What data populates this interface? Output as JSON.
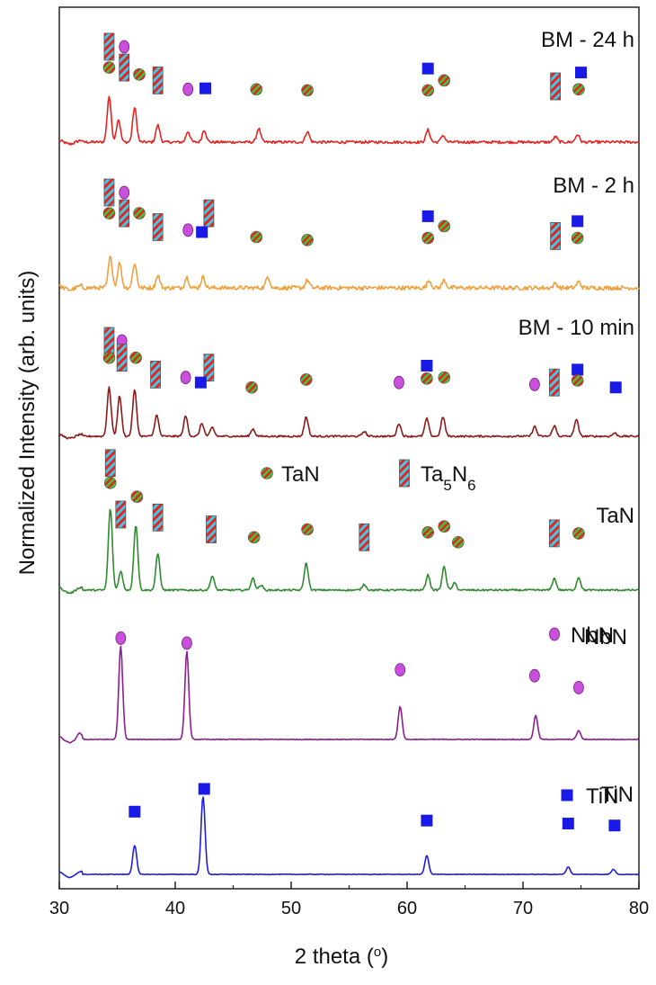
{
  "chart_data": {
    "type": "line",
    "xlabel": "2 theta (",
    "xlabel_sup": "o",
    "xlabel_end": ")",
    "ylabel": "Normalized Intensity (arb. units)",
    "xlim": [
      30,
      80
    ],
    "xticks": [
      30,
      40,
      50,
      60,
      70,
      80
    ],
    "grid": false,
    "series": [
      {
        "name": "BM - 24 h",
        "color": "#e8231f",
        "noise": 0.35,
        "peaks": [
          {
            "x": 34.3,
            "h": 6.0
          },
          {
            "x": 35.1,
            "h": 3.0
          },
          {
            "x": 36.5,
            "h": 4.5
          },
          {
            "x": 38.5,
            "h": 2.2
          },
          {
            "x": 41.1,
            "h": 1.4
          },
          {
            "x": 42.5,
            "h": 1.6
          },
          {
            "x": 47.2,
            "h": 1.8
          },
          {
            "x": 51.4,
            "h": 1.4
          },
          {
            "x": 61.8,
            "h": 1.6
          },
          {
            "x": 63.1,
            "h": 0.9
          },
          {
            "x": 72.8,
            "h": 0.7
          },
          {
            "x": 74.7,
            "h": 1.0
          }
        ],
        "markers": [
          {
            "type": "Ta5N6",
            "x": 34.3,
            "level": 3.0
          },
          {
            "type": "NbN",
            "x": 35.6,
            "level": 3.0
          },
          {
            "type": "TaN",
            "x": 34.3,
            "level": 1.95
          },
          {
            "type": "Ta5N6",
            "x": 35.6,
            "level": 1.95
          },
          {
            "type": "TaN",
            "x": 36.9,
            "level": 1.6
          },
          {
            "type": "Ta5N6",
            "x": 38.5,
            "level": 1.3
          },
          {
            "type": "NbN",
            "x": 41.1,
            "level": 0.85
          },
          {
            "type": "TiN",
            "x": 42.6,
            "level": 0.9
          },
          {
            "type": "TaN",
            "x": 47.0,
            "level": 0.85
          },
          {
            "type": "TaN",
            "x": 51.4,
            "level": 0.8
          },
          {
            "type": "TiN",
            "x": 61.8,
            "level": 1.9
          },
          {
            "type": "TaN",
            "x": 63.2,
            "level": 1.3
          },
          {
            "type": "TaN",
            "x": 61.8,
            "level": 0.8
          },
          {
            "type": "Ta5N6",
            "x": 72.8,
            "level": 1.0
          },
          {
            "type": "TiN",
            "x": 75.0,
            "level": 1.7
          },
          {
            "type": "TaN",
            "x": 74.8,
            "level": 0.85
          }
        ]
      },
      {
        "name": "BM - 2 h",
        "color": "#f0a03c",
        "noise": 0.55,
        "peaks": [
          {
            "x": 34.4,
            "h": 4.0
          },
          {
            "x": 35.2,
            "h": 3.3
          },
          {
            "x": 36.5,
            "h": 3.2
          },
          {
            "x": 38.5,
            "h": 1.6
          },
          {
            "x": 41.0,
            "h": 1.4
          },
          {
            "x": 42.4,
            "h": 1.4
          },
          {
            "x": 48.0,
            "h": 1.5
          },
          {
            "x": 51.4,
            "h": 1.0
          },
          {
            "x": 61.9,
            "h": 1.0
          },
          {
            "x": 63.2,
            "h": 1.0
          },
          {
            "x": 72.8,
            "h": 0.6
          },
          {
            "x": 74.8,
            "h": 0.8
          }
        ],
        "markers": [
          {
            "type": "Ta5N6",
            "x": 34.3,
            "level": 3.0
          },
          {
            "type": "NbN",
            "x": 35.6,
            "level": 3.0
          },
          {
            "type": "TaN",
            "x": 34.3,
            "level": 1.95
          },
          {
            "type": "Ta5N6",
            "x": 35.6,
            "level": 1.95
          },
          {
            "type": "TaN",
            "x": 36.9,
            "level": 1.95
          },
          {
            "type": "Ta5N6",
            "x": 38.5,
            "level": 1.25
          },
          {
            "type": "Ta5N6",
            "x": 42.9,
            "level": 1.95
          },
          {
            "type": "NbN",
            "x": 41.1,
            "level": 1.1
          },
          {
            "type": "TiN",
            "x": 42.3,
            "level": 1.0
          },
          {
            "type": "TaN",
            "x": 47.0,
            "level": 0.75
          },
          {
            "type": "TaN",
            "x": 51.4,
            "level": 0.6
          },
          {
            "type": "TiN",
            "x": 61.8,
            "level": 1.8
          },
          {
            "type": "TaN",
            "x": 63.2,
            "level": 1.3
          },
          {
            "type": "TaN",
            "x": 61.8,
            "level": 0.7
          },
          {
            "type": "Ta5N6",
            "x": 72.8,
            "level": 0.8
          },
          {
            "type": "TiN",
            "x": 74.7,
            "level": 1.55
          },
          {
            "type": "TaN",
            "x": 74.7,
            "level": 0.7
          }
        ]
      },
      {
        "name": "BM - 10 min",
        "color": "#8b1a1a",
        "noise": 0.22,
        "peaks": [
          {
            "x": 34.3,
            "h": 6.0
          },
          {
            "x": 35.2,
            "h": 5.0
          },
          {
            "x": 36.5,
            "h": 5.7
          },
          {
            "x": 38.4,
            "h": 2.6
          },
          {
            "x": 40.9,
            "h": 2.5
          },
          {
            "x": 42.3,
            "h": 1.6
          },
          {
            "x": 43.2,
            "h": 1.1
          },
          {
            "x": 46.7,
            "h": 0.9
          },
          {
            "x": 51.3,
            "h": 2.4
          },
          {
            "x": 56.3,
            "h": 0.6
          },
          {
            "x": 59.3,
            "h": 1.6
          },
          {
            "x": 61.7,
            "h": 2.2
          },
          {
            "x": 63.1,
            "h": 2.4
          },
          {
            "x": 71.0,
            "h": 1.2
          },
          {
            "x": 72.7,
            "h": 1.3
          },
          {
            "x": 74.6,
            "h": 2.1
          },
          {
            "x": 77.9,
            "h": 0.4
          }
        ],
        "markers": [
          {
            "type": "Ta5N6",
            "x": 34.3,
            "level": 3.0
          },
          {
            "type": "NbN",
            "x": 35.4,
            "level": 3.0
          },
          {
            "type": "TaN",
            "x": 34.3,
            "level": 2.15
          },
          {
            "type": "Ta5N6",
            "x": 35.4,
            "level": 2.15
          },
          {
            "type": "TaN",
            "x": 36.6,
            "level": 2.15
          },
          {
            "type": "Ta5N6",
            "x": 38.3,
            "level": 1.3
          },
          {
            "type": "Ta5N6",
            "x": 42.9,
            "level": 1.65
          },
          {
            "type": "NbN",
            "x": 40.9,
            "level": 1.15
          },
          {
            "type": "TiN",
            "x": 42.2,
            "level": 0.9
          },
          {
            "type": "TaN",
            "x": 46.6,
            "level": 0.65
          },
          {
            "type": "TaN",
            "x": 51.3,
            "level": 1.05
          },
          {
            "type": "NbN",
            "x": 59.3,
            "level": 0.9
          },
          {
            "type": "TiN",
            "x": 61.7,
            "level": 1.75
          },
          {
            "type": "TaN",
            "x": 63.2,
            "level": 1.15
          },
          {
            "type": "TaN",
            "x": 61.7,
            "level": 1.1
          },
          {
            "type": "NbN",
            "x": 71.0,
            "level": 0.8
          },
          {
            "type": "Ta5N6",
            "x": 72.7,
            "level": 0.9
          },
          {
            "type": "TiN",
            "x": 74.7,
            "level": 1.55
          },
          {
            "type": "TaN",
            "x": 74.7,
            "level": 1.0
          },
          {
            "type": "TiN",
            "x": 78.0,
            "level": 0.65
          }
        ]
      },
      {
        "name": "TaN",
        "color": "#2e8b2e",
        "noise": 0.15,
        "peaks": [
          {
            "x": 34.4,
            "h": 7.0
          },
          {
            "x": 35.3,
            "h": 1.6
          },
          {
            "x": 36.6,
            "h": 5.6
          },
          {
            "x": 38.5,
            "h": 3.1
          },
          {
            "x": 43.2,
            "h": 1.2
          },
          {
            "x": 46.7,
            "h": 1.0
          },
          {
            "x": 47.4,
            "h": 0.4
          },
          {
            "x": 51.3,
            "h": 2.3
          },
          {
            "x": 56.3,
            "h": 0.5
          },
          {
            "x": 61.8,
            "h": 1.3
          },
          {
            "x": 63.2,
            "h": 2.0
          },
          {
            "x": 64.1,
            "h": 0.6
          },
          {
            "x": 72.7,
            "h": 1.0
          },
          {
            "x": 74.8,
            "h": 1.1
          }
        ],
        "markers": [
          {
            "type": "Ta5N6",
            "x": 34.4,
            "level": 4.6
          },
          {
            "type": "TaN",
            "x": 34.4,
            "level": 3.6
          },
          {
            "type": "Ta5N6",
            "x": 35.3,
            "level": 2.0
          },
          {
            "type": "TaN",
            "x": 36.7,
            "level": 2.9
          },
          {
            "type": "Ta5N6",
            "x": 38.5,
            "level": 1.85
          },
          {
            "type": "Ta5N6",
            "x": 43.1,
            "level": 1.25
          },
          {
            "type": "TaN",
            "x": 46.8,
            "level": 0.85
          },
          {
            "type": "TaN",
            "x": 51.4,
            "level": 1.25
          },
          {
            "type": "Ta5N6",
            "x": 56.3,
            "level": 0.85
          },
          {
            "type": "TaN",
            "x": 61.8,
            "level": 1.1
          },
          {
            "type": "TaN",
            "x": 63.2,
            "level": 1.4
          },
          {
            "type": "TaN",
            "x": 64.4,
            "level": 0.6
          },
          {
            "type": "Ta5N6",
            "x": 72.7,
            "level": 1.05
          },
          {
            "type": "TaN",
            "x": 74.8,
            "level": 1.05
          }
        ]
      },
      {
        "name": "NbN",
        "color": "#8e1e8e",
        "noise": 0.06,
        "peaks": [
          {
            "x": 31.7,
            "h": 0.3
          },
          {
            "x": 35.3,
            "h": 7.4
          },
          {
            "x": 41.0,
            "h": 7.0
          },
          {
            "x": 59.4,
            "h": 2.6
          },
          {
            "x": 71.1,
            "h": 1.9
          },
          {
            "x": 74.8,
            "h": 0.7
          }
        ],
        "markers": [
          {
            "type": "NbN",
            "x": 35.3,
            "level": 3.3
          },
          {
            "type": "NbN",
            "x": 41.0,
            "level": 3.05
          },
          {
            "type": "NbN",
            "x": 59.4,
            "level": 1.7
          },
          {
            "type": "NbN",
            "x": 71.0,
            "level": 1.4
          },
          {
            "type": "NbN",
            "x": 74.8,
            "level": 0.8
          }
        ]
      },
      {
        "name": "TiN",
        "color": "#1f1fd6",
        "noise": 0.05,
        "peaks": [
          {
            "x": 36.5,
            "h": 2.3
          },
          {
            "x": 42.4,
            "h": 6.2
          },
          {
            "x": 61.7,
            "h": 1.5
          },
          {
            "x": 73.9,
            "h": 0.6
          },
          {
            "x": 77.8,
            "h": 0.4
          }
        ],
        "markers": [
          {
            "type": "TiN",
            "x": 36.5,
            "level": 1.35
          },
          {
            "type": "TiN",
            "x": 42.5,
            "level": 2.5
          },
          {
            "type": "TiN",
            "x": 61.7,
            "level": 0.9
          },
          {
            "type": "TiN",
            "x": 73.9,
            "level": 0.75
          },
          {
            "type": "TiN",
            "x": 77.9,
            "level": 0.65
          }
        ]
      }
    ],
    "legend": [
      {
        "type": "TaN",
        "text": "TaN"
      },
      {
        "type": "Ta5N6",
        "text": "Ta",
        "sub1": "5",
        "mid": "N",
        "sub2": "6"
      },
      {
        "type": "NbN",
        "text": "NbN"
      },
      {
        "type": "TiN",
        "text": "TiN"
      }
    ],
    "marker_colors": {
      "TaN_fill": "#e8231f",
      "TaN_stripe": "#3cc83c",
      "Ta5N6_fill": "#e8231f",
      "Ta5N6_stripe": "#40c8e8",
      "NbN": "#c850dc",
      "NbN_edge": "#7a1f7a",
      "TiN": "#1a1ae6"
    }
  }
}
